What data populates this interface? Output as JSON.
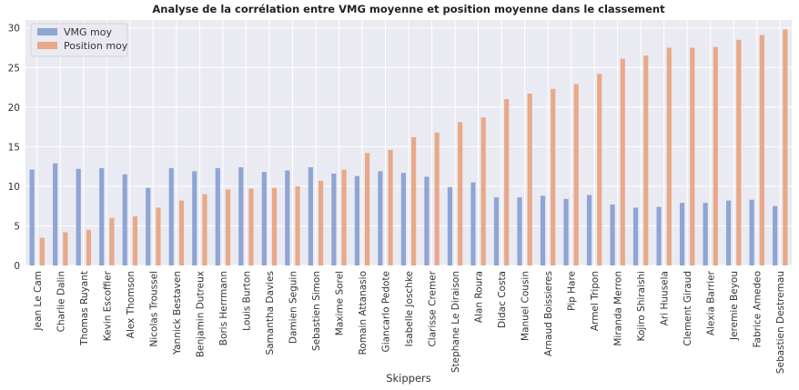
{
  "chart_data": {
    "type": "bar",
    "title": "Analyse de la corrélation entre VMG moyenne et position moyenne dans le classement",
    "xlabel": "Skippers",
    "ylabel": "",
    "ylim": [
      0,
      31
    ],
    "yticks": [
      0,
      5,
      10,
      15,
      20,
      25,
      30
    ],
    "grid": true,
    "legend_position": "top-left",
    "categories": [
      "Jean Le Cam",
      "Charlie Dalin",
      "Thomas Ruyant",
      "Kevin Escoffier",
      "Alex Thomson",
      "Nicolas Troussel",
      "Yannick Bestaven",
      "Benjamin Dutreux",
      "Boris Herrmann",
      "Louis Burton",
      "Samantha Davies",
      "Damien Seguin",
      "Sebastien Simon",
      "Maxime Sorel",
      "Romain Attanasio",
      "Giancarlo Pedote",
      "Isabelle Joschke",
      "Clarisse Cremer",
      "Stephane Le Diraison",
      "Alan Roura",
      "Didac Costa",
      "Manuel Cousin",
      "Arnaud Boissieres",
      "Pip Hare",
      "Armel Tripon",
      "Miranda Merron",
      "Kojiro Shiraishi",
      "Ari Huusela",
      "Clement Giraud",
      "Alexia Barrier",
      "Jeremie Beyou",
      "Fabrice Amedeo",
      "Sebastien Destremau"
    ],
    "series": [
      {
        "name": "VMG moy",
        "color": "#8fa5d4",
        "values": [
          12.1,
          12.9,
          12.2,
          12.3,
          11.5,
          9.8,
          12.3,
          11.9,
          12.3,
          12.4,
          11.8,
          12.0,
          12.4,
          11.6,
          11.3,
          11.9,
          11.7,
          11.2,
          9.9,
          10.5,
          8.6,
          8.6,
          8.8,
          8.4,
          8.9,
          7.7,
          7.3,
          7.4,
          7.9,
          7.9,
          8.2,
          8.3,
          7.5
        ]
      },
      {
        "name": "Position moy",
        "color": "#e8a98a",
        "values": [
          3.5,
          4.2,
          4.5,
          6.0,
          6.2,
          7.3,
          8.2,
          9.0,
          9.6,
          9.7,
          9.8,
          10.0,
          10.7,
          12.1,
          14.2,
          14.6,
          16.2,
          16.8,
          18.1,
          18.7,
          21.0,
          21.7,
          22.3,
          22.9,
          24.2,
          26.1,
          26.5,
          27.5,
          27.5,
          27.6,
          28.5,
          29.1,
          29.8
        ]
      }
    ],
    "colors": {
      "plot_background": "#eaeaf2",
      "grid": "#ffffff"
    }
  }
}
